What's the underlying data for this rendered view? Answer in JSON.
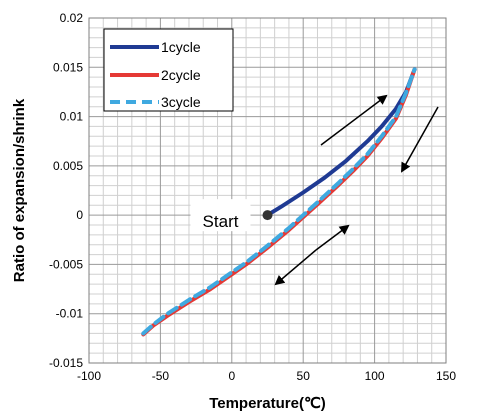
{
  "chart_data": {
    "type": "line",
    "title": "",
    "xlabel": "Temperature(℃)",
    "ylabel": "Ratio of expansion/shrink",
    "xlim": [
      -100,
      150
    ],
    "ylim": [
      -0.015,
      0.02
    ],
    "x_ticks": [
      "-100",
      "-50",
      "0",
      "50",
      "100",
      "150"
    ],
    "y_ticks": [
      "0.02",
      "0.015",
      "0.01",
      "0.005",
      "0",
      "-0.005",
      "-0.01",
      "-0.015"
    ],
    "grid": true,
    "legend_position": "top-left",
    "series": [
      {
        "name": "1cycle",
        "color": "#1f3a93",
        "style": "solid",
        "x": [
          25,
          35,
          50,
          65,
          80,
          95,
          105,
          115,
          122,
          128
        ],
        "y": [
          0.0,
          0.0009,
          0.0023,
          0.0038,
          0.0055,
          0.0075,
          0.009,
          0.0108,
          0.0125,
          0.0148
        ]
      },
      {
        "name": "2cycle",
        "color": "#e53935",
        "style": "solid",
        "x": [
          128,
          122,
          115,
          105,
          95,
          85,
          75,
          60,
          40,
          25,
          10,
          0,
          -15,
          -30,
          -45,
          -55,
          -62
        ],
        "y": [
          0.0148,
          0.0122,
          0.0098,
          0.0078,
          0.006,
          0.0045,
          0.0031,
          0.0011,
          -0.0015,
          -0.0033,
          -0.005,
          -0.006,
          -0.0075,
          -0.0088,
          -0.0102,
          -0.0112,
          -0.0121
        ]
      },
      {
        "name": "3cycle",
        "color": "#3fa9e0",
        "style": "dashed",
        "x": [
          -62,
          -55,
          -45,
          -30,
          -15,
          0,
          10,
          25,
          40,
          60,
          75,
          85,
          95,
          105,
          115,
          122,
          128
        ],
        "y": [
          -0.012,
          -0.0111,
          -0.01,
          -0.0086,
          -0.0073,
          -0.0058,
          -0.0048,
          -0.0031,
          -0.0013,
          0.0013,
          0.0033,
          0.0047,
          0.0062,
          0.008,
          0.01,
          0.0124,
          0.0148
        ]
      }
    ],
    "annotations": [
      {
        "text": "Start",
        "x": 25,
        "y": 0.0
      }
    ]
  }
}
